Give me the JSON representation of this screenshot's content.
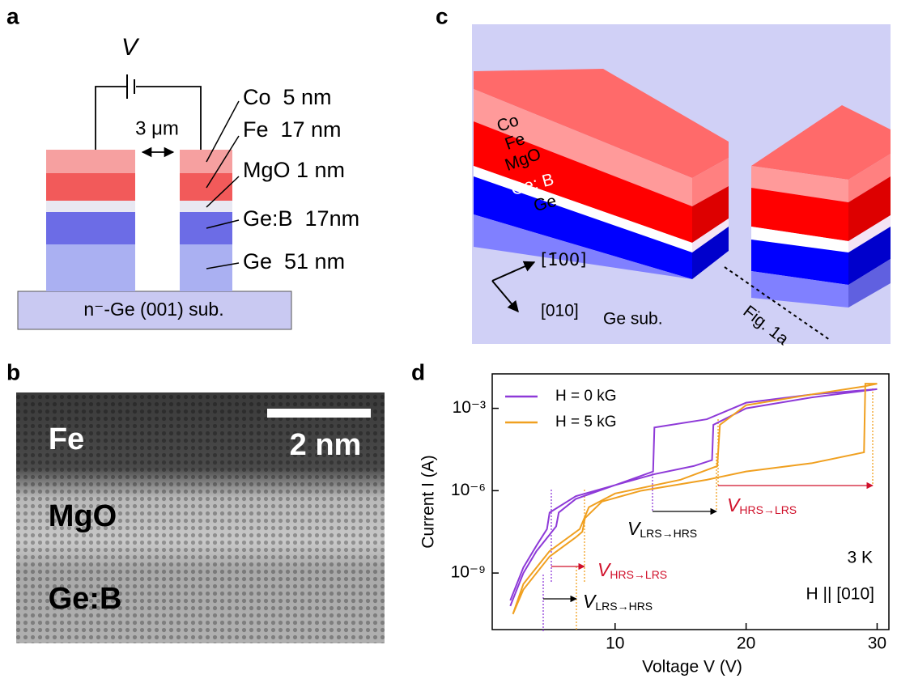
{
  "panels": {
    "a": {
      "label": "a",
      "source": "V",
      "gap": "3 μm",
      "layer_labels": [
        "Co  5 nm",
        "Fe  17 nm",
        "MgO 1 nm",
        "Ge:B  17nm",
        "Ge  51 nm"
      ],
      "substrate": "n⁻-Ge (001) sub."
    },
    "b": {
      "label": "b",
      "layer_labels": [
        "Fe",
        "MgO",
        "Ge:B"
      ],
      "scale_bar": "2 nm"
    },
    "c": {
      "label": "c",
      "layer_labels": [
        "Co",
        "Fe",
        "MgO",
        "Ge: B",
        "Ge"
      ],
      "directions": [
        "[1̄00]",
        "[010]"
      ],
      "substrate": "Ge sub.",
      "cut": "Fig. 1a"
    },
    "d": {
      "label": "d"
    }
  },
  "chart_data": {
    "type": "line",
    "x_label": "Voltage V (V)",
    "y_label": "Current I (A)",
    "log_y": true,
    "grid": false,
    "xlim": [
      0.62,
      30.9
    ],
    "ylim": [
      8.7e-12,
      0.018
    ],
    "xticks": [
      10,
      20,
      30
    ],
    "yticks": [
      {
        "value": 0.001,
        "label": "10⁻³"
      },
      {
        "value": 1e-06,
        "label": "10⁻⁶"
      },
      {
        "value": 1e-09,
        "label": "10⁻⁹"
      }
    ],
    "series": [
      {
        "name": "H = 0 kG",
        "color": "#8e3ad8",
        "x": [
          2,
          3,
          4,
          5,
          5.5,
          5.7,
          7,
          10,
          13,
          16,
          17.4,
          17.5,
          20,
          25,
          30,
          25,
          20,
          17,
          13,
          12.9,
          10,
          7,
          5,
          4.8,
          4,
          3,
          2
        ],
        "values": [
          6.3e-11,
          1e-09,
          6.3e-09,
          2.5e-08,
          5e-08,
          1.6e-07,
          5e-07,
          1.6e-06,
          4e-06,
          7.9e-06,
          1.3e-05,
          0.00025,
          0.001,
          0.0025,
          0.005,
          0.0032,
          0.0016,
          0.0004,
          0.0002,
          5e-06,
          1.6e-06,
          6.3e-07,
          1.6e-07,
          4e-08,
          1e-08,
          1.6e-09,
          1e-10
        ]
      },
      {
        "name": "H = 5 kG",
        "color": "#f0a020",
        "x": [
          2.2,
          3,
          5,
          7,
          7.5,
          7.7,
          9,
          12,
          17,
          20,
          25,
          29,
          29.1,
          30,
          29,
          25,
          20,
          18,
          17.8,
          15,
          10,
          8,
          7.3,
          5,
          3,
          2.2
        ],
        "values": [
          3.2e-11,
          2.5e-10,
          4e-09,
          2e-08,
          3.2e-08,
          1e-07,
          4e-07,
          1e-06,
          2.5e-06,
          5e-06,
          1e-05,
          2.5e-05,
          0.0079,
          0.0079,
          0.0063,
          0.0032,
          0.0013,
          0.00025,
          7.9e-06,
          2.5e-06,
          7.9e-07,
          2.5e-07,
          4e-08,
          6.3e-09,
          4e-10,
          3.2e-11
        ]
      }
    ],
    "annotations": [
      {
        "symbol": "V",
        "subscript": "LRS→HRS"
      },
      {
        "symbol": "V",
        "subscript": "HRS→LRS"
      },
      {
        "symbol": "V",
        "subscript": "LRS→HRS"
      },
      {
        "symbol": "V",
        "subscript": "HRS→LRS"
      }
    ],
    "temperature": "3 K",
    "field_direction": "H || [010]"
  }
}
